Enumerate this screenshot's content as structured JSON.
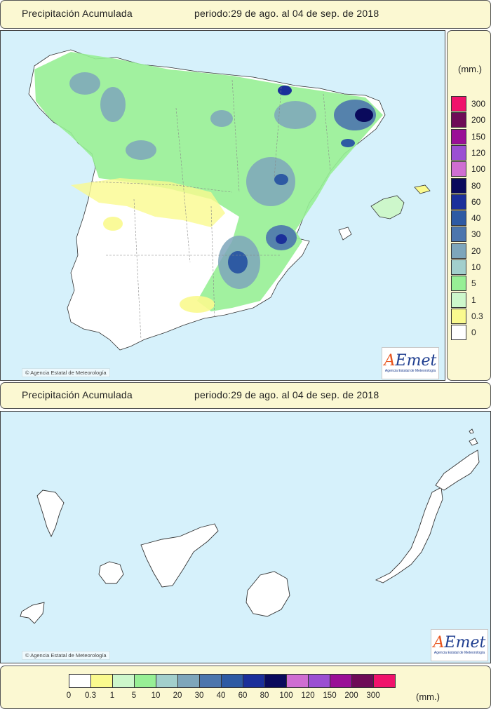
{
  "top_header": {
    "title": "Precipitación Acumulada",
    "period": "periodo:29 de ago. al 04 de sep. de 2018"
  },
  "peninsula_map": {
    "credit": "© Agencia Estatal de Meteorología",
    "logo": {
      "text_a": "A",
      "text_rest": "Emet",
      "subtitle": "Agencia Estatal de Meteorología"
    }
  },
  "side_legend": {
    "unit": "(mm.)",
    "levels": [
      {
        "label": "300",
        "color": "#f0126b"
      },
      {
        "label": "200",
        "color": "#6e0b57"
      },
      {
        "label": "150",
        "color": "#9a0f96"
      },
      {
        "label": "120",
        "color": "#9b4fd2"
      },
      {
        "label": "100",
        "color": "#cf6ed2"
      },
      {
        "label": "80",
        "color": "#0a0a5c"
      },
      {
        "label": "60",
        "color": "#1b2f9a"
      },
      {
        "label": "40",
        "color": "#2e5aa3"
      },
      {
        "label": "30",
        "color": "#4c76ad"
      },
      {
        "label": "20",
        "color": "#7ea6bb"
      },
      {
        "label": "10",
        "color": "#a2cfcc"
      },
      {
        "label": "5",
        "color": "#97ef95"
      },
      {
        "label": "1",
        "color": "#cdf7cb"
      },
      {
        "label": "0.3",
        "color": "#fafa8e"
      },
      {
        "label": "0",
        "color": "#ffffff"
      }
    ]
  },
  "canarias_header": {
    "title": "Precipitación Acumulada",
    "period": "periodo:29 de ago. al 04 de sep. de 2018"
  },
  "canarias_map": {
    "credit": "© Agencia Estatal de Meteorología",
    "logo": {
      "text_a": "A",
      "text_rest": "Emet",
      "subtitle": "Agencia Estatal de Meteorología"
    }
  },
  "bottom_legend": {
    "unit": "(mm.)",
    "labels": [
      "0",
      "0.3",
      "1",
      "5",
      "10",
      "20",
      "30",
      "40",
      "60",
      "80",
      "100",
      "120",
      "150",
      "200",
      "300"
    ],
    "colors": [
      "#ffffff",
      "#fafa8e",
      "#cdf7cb",
      "#97ef95",
      "#a2cfcc",
      "#7ea6bb",
      "#4c76ad",
      "#2e5aa3",
      "#1b2f9a",
      "#0a0a5c",
      "#cf6ed2",
      "#9b4fd2",
      "#9a0f96",
      "#6e0b57",
      "#f0126b"
    ]
  }
}
